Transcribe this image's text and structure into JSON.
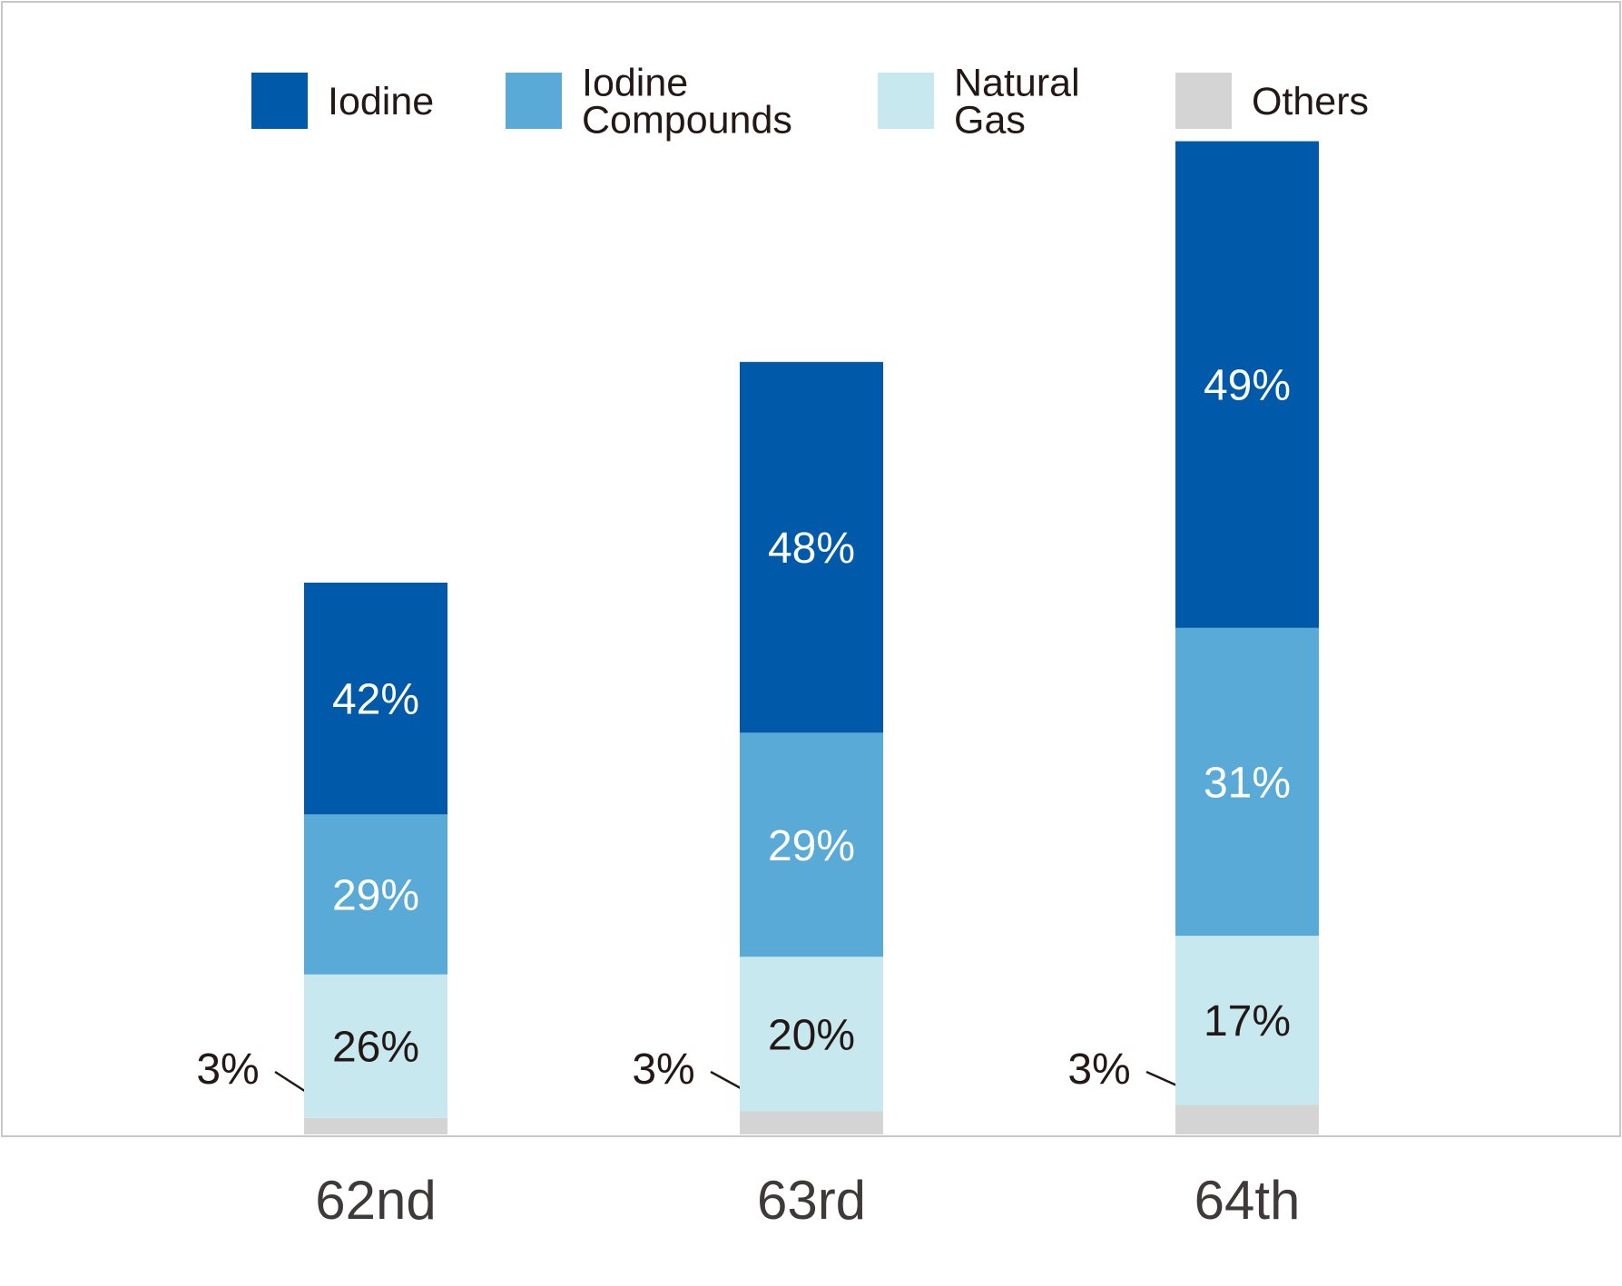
{
  "chart_data": {
    "type": "bar",
    "stacked": true,
    "categories": [
      "62nd",
      "63rd",
      "64th"
    ],
    "series": [
      {
        "name": "Others",
        "color": "#d4d4d4",
        "values": [
          3,
          3,
          3
        ],
        "labels": [
          "3%",
          "3%",
          "3%"
        ],
        "label_style": "callout"
      },
      {
        "name": "Natural Gas",
        "color": "#c8e8ef",
        "values": [
          26,
          20,
          17
        ],
        "labels": [
          "26%",
          "20%",
          "17%"
        ],
        "label_style": "inside-dark"
      },
      {
        "name": "Iodine Compounds",
        "color": "#5aaad7",
        "values": [
          29,
          29,
          31
        ],
        "labels": [
          "29%",
          "29%",
          "31%"
        ],
        "label_style": "inside-light"
      },
      {
        "name": "Iodine",
        "color": "#005aa9",
        "values": [
          42,
          48,
          49
        ],
        "labels": [
          "42%",
          "48%",
          "49%"
        ],
        "label_style": "inside-light"
      }
    ],
    "bar_totals_relative": [
      100,
      140,
      180
    ],
    "legend": {
      "position": "top",
      "order": [
        "Iodine",
        "Iodine Compounds",
        "Natural Gas",
        "Others"
      ],
      "display_lines": {
        "Iodine": [
          "Iodine"
        ],
        "Iodine Compounds": [
          "Iodine",
          "Compounds"
        ],
        "Natural Gas": [
          "Natural",
          "Gas"
        ],
        "Others": [
          "Others"
        ]
      }
    },
    "title": "",
    "xlabel": "",
    "ylabel": "",
    "y_axis_visible": false,
    "grid": false,
    "frame": true
  }
}
